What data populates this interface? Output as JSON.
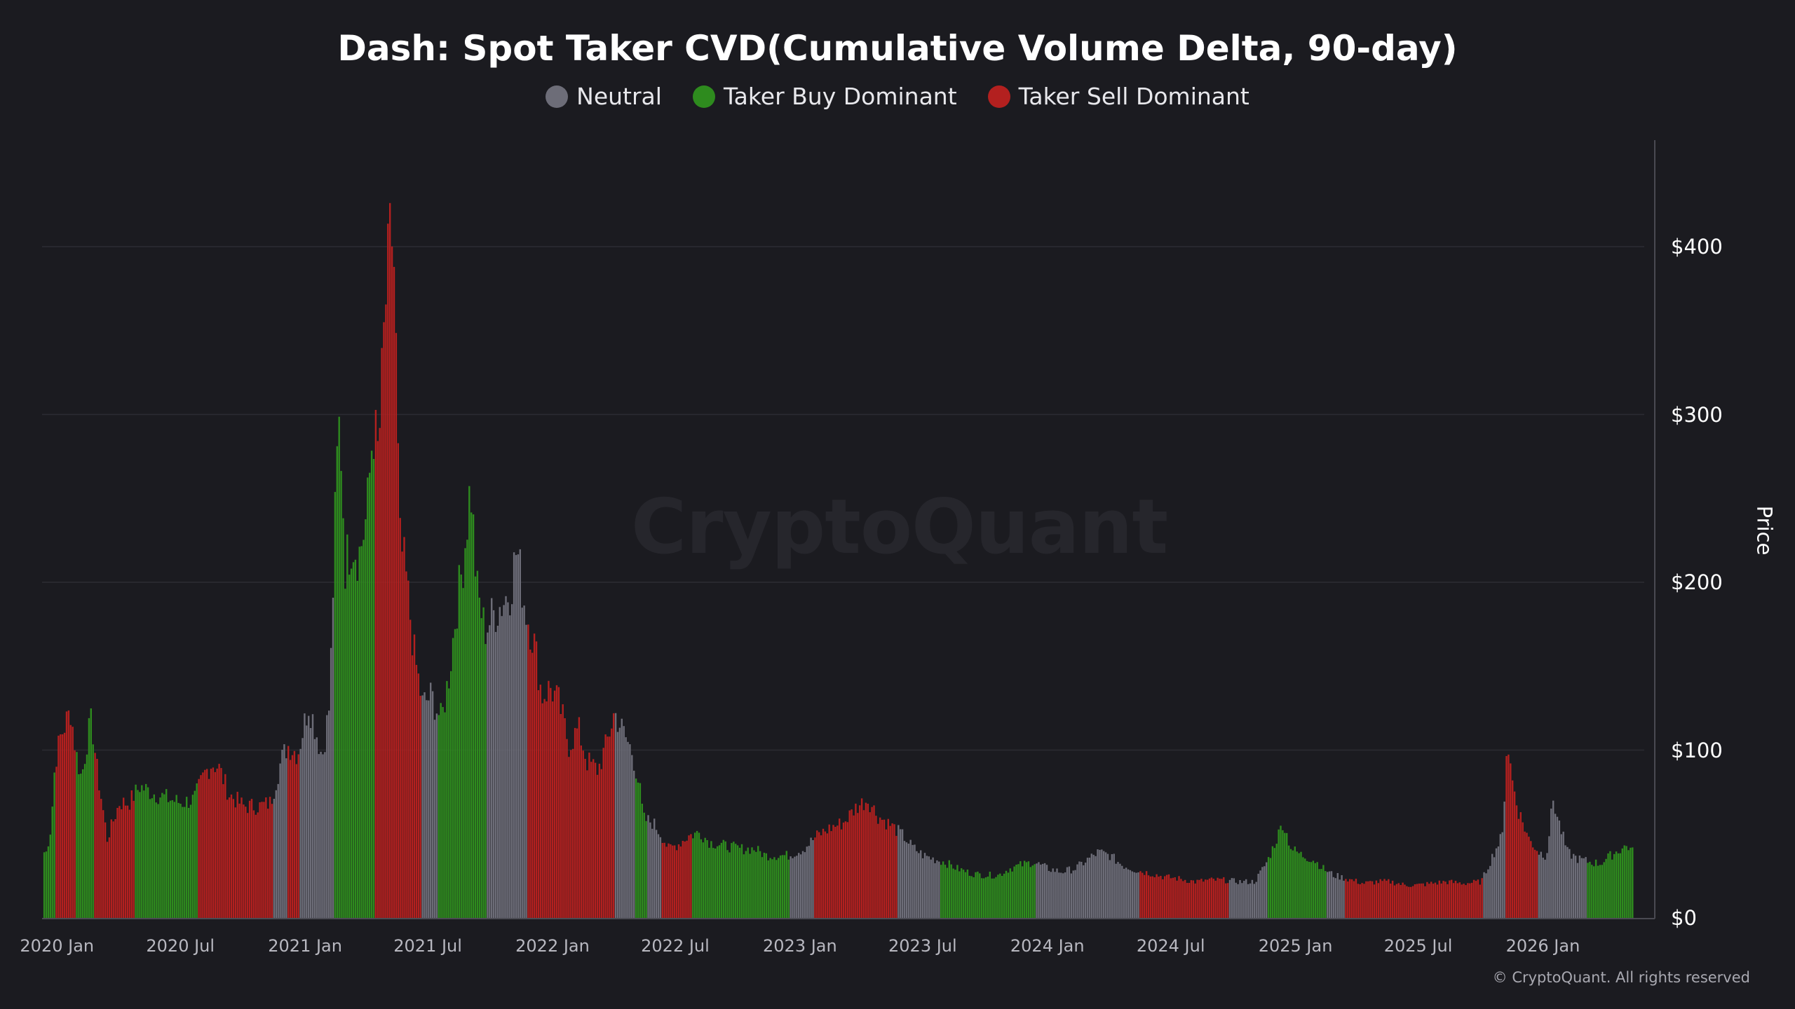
{
  "title": "Dash: Spot Taker CVD(Cumulative Volume Delta, 90-day)",
  "legend": [
    {
      "label": "Neutral",
      "color": "#6d6d78"
    },
    {
      "label": "Taker Buy Dominant",
      "color": "#2e8b1e"
    },
    {
      "label": "Taker Sell Dominant",
      "color": "#b3201f"
    }
  ],
  "watermark": "CryptoQuant",
  "credit": "© CryptoQuant. All rights reserved",
  "chart_data": {
    "type": "bar",
    "title": "Dash: Spot Taker CVD(Cumulative Volume Delta, 90-day)",
    "ylabel": "Price",
    "ylim": [
      0,
      450
    ],
    "y_axis_side": "right",
    "y_ticks": [
      "$0",
      "$100",
      "$200",
      "$300",
      "$400"
    ],
    "y_tick_values": [
      0,
      100,
      200,
      300,
      400
    ],
    "x_ticks": [
      "2020 Jan",
      "2020 Jul",
      "2021 Jan",
      "2021 Jul",
      "2022 Jan",
      "2022 Jul",
      "2023 Jan",
      "2023 Jul",
      "2024 Jan",
      "2024 Jul",
      "2025 Jan",
      "2025 Jul",
      "2026 Jan"
    ],
    "x_tick_dates": [
      "2020-01-01",
      "2020-07-01",
      "2021-01-01",
      "2021-07-01",
      "2022-01-01",
      "2022-07-01",
      "2023-01-01",
      "2023-07-01",
      "2024-01-01",
      "2024-07-01",
      "2025-01-01",
      "2025-07-01",
      "2026-01-01"
    ],
    "x_range": [
      "2019-12-10",
      "2026-05-15"
    ],
    "grid": true,
    "legend_position": "top-center",
    "price_points": [
      [
        "2019-12-15",
        40
      ],
      [
        "2019-12-22",
        55
      ],
      [
        "2019-12-28",
        95
      ],
      [
        "2020-01-05",
        110
      ],
      [
        "2020-01-14",
        120
      ],
      [
        "2020-01-20",
        126
      ],
      [
        "2020-01-28",
        100
      ],
      [
        "2020-02-05",
        85
      ],
      [
        "2020-02-14",
        110
      ],
      [
        "2020-02-20",
        120
      ],
      [
        "2020-02-28",
        90
      ],
      [
        "2020-03-08",
        65
      ],
      [
        "2020-03-14",
        48
      ],
      [
        "2020-03-22",
        58
      ],
      [
        "2020-04-01",
        70
      ],
      [
        "2020-04-15",
        70
      ],
      [
        "2020-05-01",
        80
      ],
      [
        "2020-05-20",
        76
      ],
      [
        "2020-06-15",
        72
      ],
      [
        "2020-07-01",
        70
      ],
      [
        "2020-07-20",
        72
      ],
      [
        "2020-08-05",
        88
      ],
      [
        "2020-08-15",
        94
      ],
      [
        "2020-08-25",
        92
      ],
      [
        "2020-09-10",
        75
      ],
      [
        "2020-10-01",
        68
      ],
      [
        "2020-10-25",
        68
      ],
      [
        "2020-11-10",
        70
      ],
      [
        "2020-11-25",
        95
      ],
      [
        "2020-12-05",
        105
      ],
      [
        "2020-12-20",
        100
      ],
      [
        "2021-01-05",
        130
      ],
      [
        "2021-01-12",
        120
      ],
      [
        "2021-01-25",
        98
      ],
      [
        "2021-02-05",
        130
      ],
      [
        "2021-02-15",
        270
      ],
      [
        "2021-02-20",
        305
      ],
      [
        "2021-02-28",
        215
      ],
      [
        "2021-03-10",
        230
      ],
      [
        "2021-03-20",
        220
      ],
      [
        "2021-04-01",
        245
      ],
      [
        "2021-04-10",
        300
      ],
      [
        "2021-04-18",
        280
      ],
      [
        "2021-04-28",
        370
      ],
      [
        "2021-05-07",
        420
      ],
      [
        "2021-05-12",
        390
      ],
      [
        "2021-05-19",
        230
      ],
      [
        "2021-05-28",
        210
      ],
      [
        "2021-06-10",
        160
      ],
      [
        "2021-06-22",
        130
      ],
      [
        "2021-07-05",
        135
      ],
      [
        "2021-07-20",
        120
      ],
      [
        "2021-08-01",
        150
      ],
      [
        "2021-08-10",
        185
      ],
      [
        "2021-08-22",
        220
      ],
      [
        "2021-09-01",
        265
      ],
      [
        "2021-09-10",
        200
      ],
      [
        "2021-09-22",
        175
      ],
      [
        "2021-10-05",
        185
      ],
      [
        "2021-10-15",
        190
      ],
      [
        "2021-10-30",
        200
      ],
      [
        "2021-11-08",
        225
      ],
      [
        "2021-11-20",
        190
      ],
      [
        "2021-12-05",
        165
      ],
      [
        "2021-12-15",
        135
      ],
      [
        "2021-12-28",
        140
      ],
      [
        "2022-01-10",
        130
      ],
      [
        "2022-01-24",
        105
      ],
      [
        "2022-02-07",
        115
      ],
      [
        "2022-02-20",
        95
      ],
      [
        "2022-03-08",
        90
      ],
      [
        "2022-03-20",
        105
      ],
      [
        "2022-04-01",
        125
      ],
      [
        "2022-04-12",
        115
      ],
      [
        "2022-04-28",
        100
      ],
      [
        "2022-05-08",
        80
      ],
      [
        "2022-05-14",
        60
      ],
      [
        "2022-05-28",
        58
      ],
      [
        "2022-06-10",
        50
      ],
      [
        "2022-06-20",
        42
      ],
      [
        "2022-07-05",
        45
      ],
      [
        "2022-07-20",
        50
      ],
      [
        "2022-08-05",
        52
      ],
      [
        "2022-08-20",
        46
      ],
      [
        "2022-09-10",
        44
      ],
      [
        "2022-10-05",
        42
      ],
      [
        "2022-10-25",
        42
      ],
      [
        "2022-11-10",
        38
      ],
      [
        "2022-11-25",
        38
      ],
      [
        "2022-12-15",
        38
      ],
      [
        "2023-01-05",
        42
      ],
      [
        "2023-01-25",
        50
      ],
      [
        "2023-02-15",
        55
      ],
      [
        "2023-03-05",
        58
      ],
      [
        "2023-03-25",
        68
      ],
      [
        "2023-04-10",
        72
      ],
      [
        "2023-04-25",
        62
      ],
      [
        "2023-05-15",
        56
      ],
      [
        "2023-06-01",
        50
      ],
      [
        "2023-06-15",
        43
      ],
      [
        "2023-07-01",
        38
      ],
      [
        "2023-07-15",
        36
      ],
      [
        "2023-08-01",
        34
      ],
      [
        "2023-08-20",
        30
      ],
      [
        "2023-09-10",
        27
      ],
      [
        "2023-10-01",
        26
      ],
      [
        "2023-10-20",
        26
      ],
      [
        "2023-11-05",
        30
      ],
      [
        "2023-11-20",
        32
      ],
      [
        "2023-12-10",
        34
      ],
      [
        "2024-01-01",
        30
      ],
      [
        "2024-01-20",
        28
      ],
      [
        "2024-02-10",
        30
      ],
      [
        "2024-03-01",
        36
      ],
      [
        "2024-03-15",
        40
      ],
      [
        "2024-04-01",
        38
      ],
      [
        "2024-04-20",
        32
      ],
      [
        "2024-05-10",
        29
      ],
      [
        "2024-06-01",
        27
      ],
      [
        "2024-06-20",
        25
      ],
      [
        "2024-07-10",
        24
      ],
      [
        "2024-08-05",
        22
      ],
      [
        "2024-08-25",
        23
      ],
      [
        "2024-09-15",
        23
      ],
      [
        "2024-10-10",
        22
      ],
      [
        "2024-11-01",
        22
      ],
      [
        "2024-11-20",
        35
      ],
      [
        "2024-12-05",
        50
      ],
      [
        "2024-12-12",
        58
      ],
      [
        "2024-12-25",
        42
      ],
      [
        "2025-01-10",
        38
      ],
      [
        "2025-01-28",
        35
      ],
      [
        "2025-02-10",
        30
      ],
      [
        "2025-02-25",
        26
      ],
      [
        "2025-03-15",
        24
      ],
      [
        "2025-04-10",
        21
      ],
      [
        "2025-05-01",
        22
      ],
      [
        "2025-05-20",
        22
      ],
      [
        "2025-06-10",
        20
      ],
      [
        "2025-07-01",
        20
      ],
      [
        "2025-07-20",
        21
      ],
      [
        "2025-08-10",
        22
      ],
      [
        "2025-09-05",
        21
      ],
      [
        "2025-10-01",
        22
      ],
      [
        "2025-10-20",
        40
      ],
      [
        "2025-11-01",
        50
      ],
      [
        "2025-11-08",
        110
      ],
      [
        "2025-11-15",
        85
      ],
      [
        "2025-11-25",
        65
      ],
      [
        "2025-12-10",
        48
      ],
      [
        "2025-12-25",
        40
      ],
      [
        "2026-01-05",
        38
      ],
      [
        "2026-01-15",
        72
      ],
      [
        "2026-01-22",
        60
      ],
      [
        "2026-02-05",
        40
      ],
      [
        "2026-02-20",
        36
      ],
      [
        "2026-03-10",
        34
      ],
      [
        "2026-03-25",
        33
      ],
      [
        "2026-04-10",
        38
      ],
      [
        "2026-04-25",
        42
      ],
      [
        "2026-05-05",
        44
      ],
      [
        "2026-05-12",
        40
      ]
    ],
    "segments": [
      {
        "start": "2019-12-10",
        "end": "2019-12-28",
        "state": "Taker Buy Dominant"
      },
      {
        "start": "2019-12-28",
        "end": "2020-01-28",
        "state": "Taker Sell Dominant"
      },
      {
        "start": "2020-01-28",
        "end": "2020-02-25",
        "state": "Taker Buy Dominant"
      },
      {
        "start": "2020-02-25",
        "end": "2020-04-25",
        "state": "Taker Sell Dominant"
      },
      {
        "start": "2020-04-25",
        "end": "2020-07-25",
        "state": "Taker Buy Dominant"
      },
      {
        "start": "2020-07-25",
        "end": "2020-11-15",
        "state": "Taker Sell Dominant"
      },
      {
        "start": "2020-11-15",
        "end": "2020-12-05",
        "state": "Neutral"
      },
      {
        "start": "2020-12-05",
        "end": "2020-12-22",
        "state": "Taker Sell Dominant"
      },
      {
        "start": "2020-12-22",
        "end": "2021-02-12",
        "state": "Neutral"
      },
      {
        "start": "2021-02-12",
        "end": "2021-04-12",
        "state": "Taker Buy Dominant"
      },
      {
        "start": "2021-04-12",
        "end": "2021-06-22",
        "state": "Taker Sell Dominant"
      },
      {
        "start": "2021-06-22",
        "end": "2021-07-15",
        "state": "Neutral"
      },
      {
        "start": "2021-07-15",
        "end": "2021-09-25",
        "state": "Taker Buy Dominant"
      },
      {
        "start": "2021-09-25",
        "end": "2021-11-25",
        "state": "Neutral"
      },
      {
        "start": "2021-11-25",
        "end": "2022-04-01",
        "state": "Taker Sell Dominant"
      },
      {
        "start": "2022-04-01",
        "end": "2022-05-01",
        "state": "Neutral"
      },
      {
        "start": "2022-05-01",
        "end": "2022-05-20",
        "state": "Taker Buy Dominant"
      },
      {
        "start": "2022-05-20",
        "end": "2022-06-10",
        "state": "Neutral"
      },
      {
        "start": "2022-06-10",
        "end": "2022-07-25",
        "state": "Taker Sell Dominant"
      },
      {
        "start": "2022-07-25",
        "end": "2022-12-15",
        "state": "Taker Buy Dominant"
      },
      {
        "start": "2022-12-15",
        "end": "2023-01-20",
        "state": "Neutral"
      },
      {
        "start": "2023-01-20",
        "end": "2023-05-25",
        "state": "Taker Sell Dominant"
      },
      {
        "start": "2023-05-25",
        "end": "2023-07-25",
        "state": "Neutral"
      },
      {
        "start": "2023-07-25",
        "end": "2023-12-15",
        "state": "Taker Buy Dominant"
      },
      {
        "start": "2023-12-15",
        "end": "2024-05-15",
        "state": "Neutral"
      },
      {
        "start": "2024-05-15",
        "end": "2024-09-25",
        "state": "Taker Sell Dominant"
      },
      {
        "start": "2024-09-25",
        "end": "2024-11-20",
        "state": "Neutral"
      },
      {
        "start": "2024-11-20",
        "end": "2025-02-15",
        "state": "Taker Buy Dominant"
      },
      {
        "start": "2025-02-15",
        "end": "2025-03-15",
        "state": "Neutral"
      },
      {
        "start": "2025-03-15",
        "end": "2025-10-05",
        "state": "Taker Sell Dominant"
      },
      {
        "start": "2025-10-05",
        "end": "2025-11-05",
        "state": "Neutral"
      },
      {
        "start": "2025-11-05",
        "end": "2025-12-25",
        "state": "Taker Sell Dominant"
      },
      {
        "start": "2025-12-25",
        "end": "2026-03-05",
        "state": "Neutral"
      },
      {
        "start": "2026-03-05",
        "end": "2026-05-15",
        "state": "Taker Buy Dominant"
      }
    ]
  }
}
